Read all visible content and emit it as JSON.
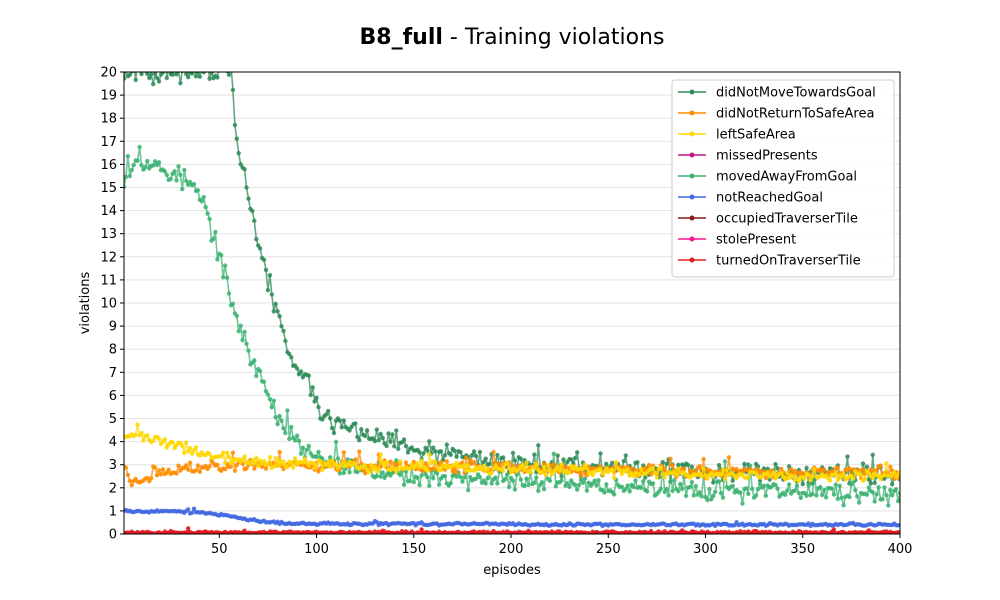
{
  "chart_data": {
    "type": "line",
    "title_bold": "B8_full",
    "title_rest": " - Training violations",
    "xlabel": "episodes",
    "ylabel": "violations",
    "xlim": [
      1,
      400
    ],
    "ylim": [
      0,
      20
    ],
    "x_ticks": [
      50,
      100,
      150,
      200,
      250,
      300,
      350,
      400
    ],
    "y_ticks": [
      0,
      1,
      2,
      3,
      4,
      5,
      6,
      7,
      8,
      9,
      10,
      11,
      12,
      13,
      14,
      15,
      16,
      17,
      18,
      19,
      20
    ],
    "grid": "horizontal",
    "legend_position": "top-right",
    "episode_step": 1,
    "series": [
      {
        "name": "didNotMoveTowardsGoal",
        "color": "#2e8b57",
        "sampled_x": [
          1,
          50,
          55,
          60,
          65,
          70,
          75,
          80,
          85,
          90,
          95,
          100,
          110,
          120,
          130,
          140,
          150,
          175,
          200,
          250,
          300,
          350,
          400
        ],
        "sampled_y": [
          20,
          20,
          20,
          16.5,
          14.5,
          12.5,
          11,
          9.5,
          8.0,
          7.0,
          6.5,
          5.5,
          4.8,
          4.4,
          4.1,
          3.9,
          3.6,
          3.3,
          3.1,
          2.9,
          2.7,
          2.6,
          2.5
        ],
        "noise": 0.35,
        "seed": 11
      },
      {
        "name": "didNotReturnToSafeArea",
        "color": "#ff8c00",
        "sampled_x": [
          1,
          5,
          10,
          20,
          30,
          40,
          50,
          70,
          100,
          150,
          200,
          250,
          300,
          350,
          400
        ],
        "sampled_y": [
          3.0,
          2.2,
          2.4,
          2.6,
          2.8,
          2.9,
          3.0,
          3.0,
          3.0,
          2.9,
          2.8,
          2.8,
          2.7,
          2.7,
          2.7
        ],
        "noise": 0.2,
        "seed": 23
      },
      {
        "name": "leftSafeArea",
        "color": "#ffd700",
        "sampled_x": [
          1,
          10,
          20,
          30,
          40,
          50,
          60,
          70,
          100,
          150,
          200,
          250,
          300,
          350,
          400
        ],
        "sampled_y": [
          4.3,
          4.2,
          4.0,
          3.8,
          3.5,
          3.3,
          3.2,
          3.1,
          3.0,
          2.9,
          2.8,
          2.7,
          2.6,
          2.55,
          2.5
        ],
        "noise": 0.18,
        "seed": 37
      },
      {
        "name": "missedPresents",
        "color": "#c71585",
        "sampled_x": [
          1,
          400
        ],
        "sampled_y": [
          0.02,
          0.02
        ],
        "noise": 0.02,
        "seed": 41
      },
      {
        "name": "movedAwayFromGoal",
        "color": "#3cb371",
        "sampled_x": [
          1,
          5,
          10,
          20,
          30,
          35,
          40,
          45,
          50,
          55,
          60,
          65,
          70,
          75,
          80,
          85,
          90,
          95,
          100,
          110,
          130,
          150,
          175,
          200,
          250,
          300,
          350,
          400
        ],
        "sampled_y": [
          15.5,
          16.0,
          16.2,
          15.8,
          15.4,
          15.2,
          14.5,
          13.5,
          12.0,
          10.3,
          9.2,
          8.0,
          7.0,
          6.0,
          5.2,
          4.5,
          3.9,
          3.5,
          3.2,
          3.0,
          2.8,
          2.5,
          2.4,
          2.3,
          2.1,
          1.9,
          1.8,
          1.7
        ],
        "noise": 0.35,
        "seed": 53
      },
      {
        "name": "notReachedGoal",
        "color": "#4169e1",
        "sampled_x": [
          1,
          30,
          45,
          55,
          65,
          75,
          85,
          100,
          150,
          200,
          250,
          300,
          350,
          400
        ],
        "sampled_y": [
          1.0,
          0.97,
          0.9,
          0.78,
          0.62,
          0.52,
          0.47,
          0.45,
          0.43,
          0.42,
          0.41,
          0.41,
          0.4,
          0.4
        ],
        "noise": 0.04,
        "seed": 67
      },
      {
        "name": "occupiedTraverserTile",
        "color": "#8b1a1a",
        "sampled_x": [
          1,
          400
        ],
        "sampled_y": [
          0.02,
          0.02
        ],
        "noise": 0.02,
        "seed": 71
      },
      {
        "name": "stolePresent",
        "color": "#ff1493",
        "sampled_x": [
          1,
          400
        ],
        "sampled_y": [
          0.01,
          0.01
        ],
        "noise": 0.01,
        "seed": 83
      },
      {
        "name": "turnedOnTraverserTile",
        "color": "#e31a1c",
        "sampled_x": [
          1,
          400
        ],
        "sampled_y": [
          0.05,
          0.05
        ],
        "noise": 0.05,
        "seed": 97
      }
    ]
  }
}
